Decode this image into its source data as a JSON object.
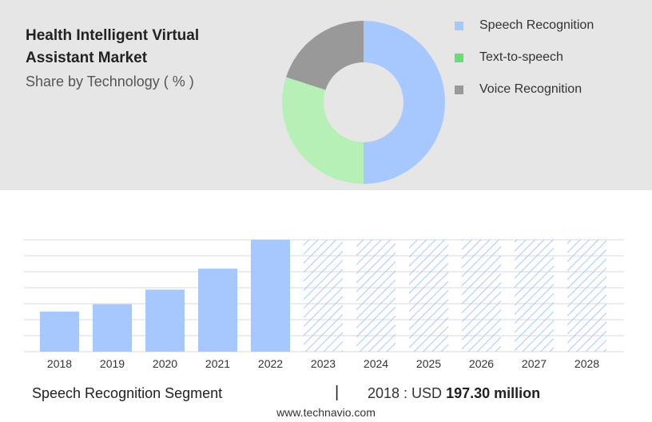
{
  "header": {
    "title": "Health Intelligent Virtual Assistant Market",
    "subtitle": "Share by Technology ( % )"
  },
  "colors": {
    "panel_bg": "#e6e6e6",
    "speech": "#a6c8ff",
    "tts": "#b6f0b6",
    "voice": "#999999",
    "tts_legend": "#66dd77",
    "bar": "#a6c8ff",
    "forecast_hatch": "#a6c8ff"
  },
  "chart_data": [
    {
      "type": "pie",
      "donut": true,
      "slices": [
        {
          "label": "Speech Recognition",
          "value": 50
        },
        {
          "label": "Text-to-speech",
          "value": 30
        },
        {
          "label": "Voice Recognition",
          "value": 20
        }
      ],
      "legend_position": "right"
    },
    {
      "type": "bar",
      "categories": [
        "2018",
        "2019",
        "2020",
        "2021",
        "2022",
        "2023",
        "2024",
        "2025",
        "2026",
        "2027",
        "2028"
      ],
      "values": [
        197.3,
        233,
        305,
        408,
        550,
        null,
        null,
        null,
        null,
        null,
        null
      ],
      "forecast_categories": [
        "2023",
        "2024",
        "2025",
        "2026",
        "2027",
        "2028"
      ],
      "ylim": [
        0,
        550
      ],
      "grid": true
    }
  ],
  "footer": {
    "segment": "Speech Recognition Segment",
    "separator": "|",
    "value_prefix": "2018 : USD",
    "value_bold": "197.30 million",
    "source": "www.technavio.com"
  }
}
